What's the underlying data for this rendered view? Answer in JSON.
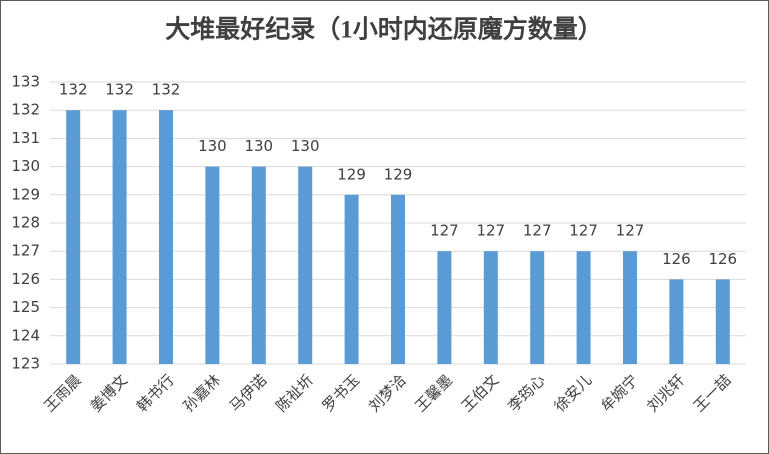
{
  "chart_data": {
    "type": "bar",
    "title": "大堆最好纪录（1小时内还原魔方数量）",
    "categories": [
      "王雨晨",
      "姜博文",
      "韩书行",
      "孙嘉林",
      "马伊诺",
      "陈祉圻",
      "罗书玉",
      "刘梦洽",
      "王馨墨",
      "王伯文",
      "李筠心",
      "徐安儿",
      "牟婉宁",
      "刘兆轩",
      "王一喆"
    ],
    "values": [
      132,
      132,
      132,
      130,
      130,
      130,
      129,
      129,
      127,
      127,
      127,
      127,
      127,
      126,
      126
    ],
    "color": "#5b9bd5",
    "ylim": [
      123,
      133
    ],
    "yticks": [
      123,
      124,
      125,
      126,
      127,
      128,
      129,
      130,
      131,
      132,
      133
    ],
    "grid": true
  }
}
